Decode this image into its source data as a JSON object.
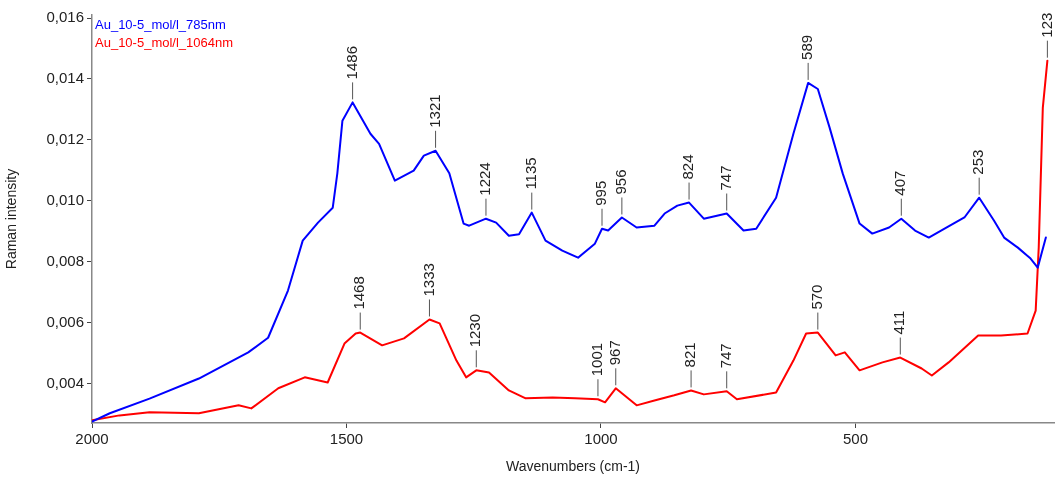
{
  "chart_data": {
    "type": "line",
    "xlabel": "Wavenumbers (cm-1)",
    "ylabel": "Raman intensity",
    "xlim": [
      2000,
      110
    ],
    "ylim": [
      0.0027,
      0.0161
    ],
    "xticks": [
      2000,
      1500,
      1000,
      500
    ],
    "yticks": [
      {
        "value": 0.004,
        "label": "0,004"
      },
      {
        "value": 0.006,
        "label": "0,006"
      },
      {
        "value": 0.008,
        "label": "0,008"
      },
      {
        "value": 0.01,
        "label": "0,010"
      },
      {
        "value": 0.012,
        "label": "0,012"
      },
      {
        "value": 0.014,
        "label": "0,014"
      },
      {
        "value": 0.016,
        "label": "0,016"
      }
    ],
    "grid": false,
    "legend": "top left",
    "marker": "none",
    "line_style": "solid",
    "series": [
      {
        "name": "Au_10-5_mol/l_785nm",
        "color": "#0000ff",
        "x": [
          2000,
          1965,
          1887,
          1790,
          1693,
          1654,
          1615,
          1586,
          1556,
          1527,
          1518,
          1508,
          1488,
          1453,
          1436,
          1405,
          1368,
          1348,
          1325,
          1298,
          1270,
          1259,
          1226,
          1206,
          1181,
          1161,
          1136,
          1109,
          1076,
          1045,
          1012,
          998,
          986,
          959,
          930,
          895,
          875,
          850,
          827,
          798,
          753,
          720,
          695,
          656,
          622,
          593,
          574,
          551,
          525,
          492,
          467,
          434,
          410,
          383,
          356,
          325,
          286,
          257,
          228,
          208,
          181,
          156,
          142,
          126
        ],
        "values": [
          0.00275,
          0.00302,
          0.0035,
          0.00416,
          0.00502,
          0.0055,
          0.00705,
          0.00869,
          0.00928,
          0.00977,
          0.0109,
          0.01263,
          0.01323,
          0.0122,
          0.01187,
          0.01066,
          0.01099,
          0.01148,
          0.01164,
          0.0109,
          0.00925,
          0.00918,
          0.00941,
          0.00928,
          0.00885,
          0.0089,
          0.00961,
          0.00869,
          0.00836,
          0.00813,
          0.00859,
          0.00908,
          0.00902,
          0.00945,
          0.00912,
          0.00918,
          0.00958,
          0.00984,
          0.00994,
          0.00941,
          0.00958,
          0.00902,
          0.00908,
          0.0101,
          0.0122,
          0.01387,
          0.01367,
          0.01241,
          0.01089,
          0.00925,
          0.00892,
          0.00912,
          0.00941,
          0.00902,
          0.00879,
          0.00908,
          0.00945,
          0.0101,
          0.00935,
          0.00879,
          0.00846,
          0.0081,
          0.0078,
          0.00879
        ]
      },
      {
        "name": "Au_10-5_mol/l_1064nm",
        "color": "#ff0000",
        "x": [
          2000,
          1946,
          1887,
          1790,
          1712,
          1687,
          1634,
          1582,
          1537,
          1504,
          1482,
          1473,
          1430,
          1387,
          1337,
          1317,
          1284,
          1265,
          1245,
          1220,
          1181,
          1148,
          1095,
          1051,
          1006,
          992,
          971,
          930,
          895,
          856,
          823,
          798,
          753,
          733,
          656,
          622,
          597,
          574,
          539,
          521,
          492,
          447,
          412,
          370,
          350,
          317,
          259,
          214,
          162,
          146,
          140,
          132,
          123
        ],
        "values": [
          0.00279,
          0.00295,
          0.00305,
          0.00302,
          0.00328,
          0.00318,
          0.00384,
          0.0042,
          0.00403,
          0.00531,
          0.00564,
          0.00567,
          0.00525,
          0.00548,
          0.0061,
          0.00597,
          0.00475,
          0.0042,
          0.00443,
          0.00436,
          0.00377,
          0.00351,
          0.00354,
          0.00351,
          0.00348,
          0.00338,
          0.00384,
          0.00328,
          0.00344,
          0.00361,
          0.00377,
          0.00364,
          0.00374,
          0.00348,
          0.0037,
          0.00475,
          0.00564,
          0.00567,
          0.00492,
          0.00502,
          0.00443,
          0.00469,
          0.00485,
          0.00449,
          0.00426,
          0.00469,
          0.00557,
          0.00557,
          0.00564,
          0.00639,
          0.00846,
          0.01305,
          0.0146
        ]
      }
    ],
    "annotations": [
      {
        "text": "1486",
        "x": 1488,
        "y": 0.01323
      },
      {
        "text": "1321",
        "x": 1325,
        "y": 0.01164
      },
      {
        "text": "1224",
        "x": 1226,
        "y": 0.00941
      },
      {
        "text": "1135",
        "x": 1136,
        "y": 0.00961
      },
      {
        "text": "995",
        "x": 998,
        "y": 0.00908
      },
      {
        "text": "956",
        "x": 959,
        "y": 0.00945
      },
      {
        "text": "824",
        "x": 827,
        "y": 0.00994
      },
      {
        "text": "747",
        "x": 753,
        "y": 0.00958
      },
      {
        "text": "589",
        "x": 593,
        "y": 0.01387
      },
      {
        "text": "407",
        "x": 410,
        "y": 0.00941
      },
      {
        "text": "253",
        "x": 257,
        "y": 0.0101
      },
      {
        "text": "123",
        "x": 123,
        "y": 0.0146
      },
      {
        "text": "1468",
        "x": 1473,
        "y": 0.00567
      },
      {
        "text": "1333",
        "x": 1337,
        "y": 0.0061
      },
      {
        "text": "1230",
        "x": 1245,
        "y": 0.00443
      },
      {
        "text": "1001",
        "x": 1006,
        "y": 0.00348
      },
      {
        "text": "967",
        "x": 971,
        "y": 0.00384
      },
      {
        "text": "821",
        "x": 823,
        "y": 0.00377
      },
      {
        "text": "747",
        "x": 753,
        "y": 0.00374
      },
      {
        "text": "570",
        "x": 574,
        "y": 0.00567
      },
      {
        "text": "411",
        "x": 412,
        "y": 0.00485
      }
    ]
  }
}
